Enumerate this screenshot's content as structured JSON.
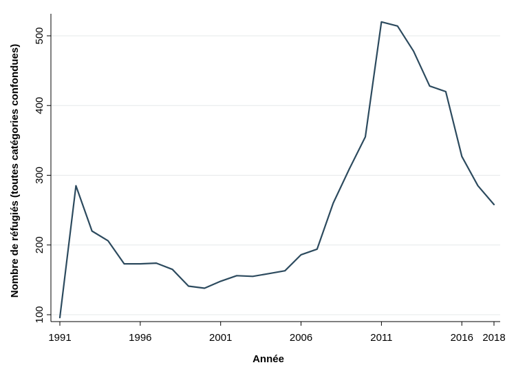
{
  "chart_data": {
    "type": "line",
    "title": "",
    "xlabel": "Année",
    "ylabel": "Nombre de réfugiés (toutes catégories confondues)",
    "xlim": [
      1991,
      2018
    ],
    "ylim": [
      100,
      520
    ],
    "x_ticks": [
      1991,
      1996,
      2001,
      2006,
      2011,
      2016,
      2018
    ],
    "y_ticks": [
      100,
      200,
      300,
      400,
      500
    ],
    "grid": true,
    "legend": "none",
    "series": [
      {
        "color": "#2c4a5e",
        "x": [
          1991,
          1992,
          1993,
          1994,
          1995,
          1996,
          1997,
          1998,
          1999,
          2000,
          2001,
          2002,
          2003,
          2004,
          2005,
          2006,
          2007,
          2008,
          2009,
          2010,
          2011,
          2012,
          2013,
          2014,
          2015,
          2016,
          2017,
          2018
        ],
        "y": [
          96,
          285,
          220,
          206,
          173,
          173,
          174,
          165,
          141,
          138,
          148,
          156,
          155,
          159,
          163,
          186,
          194,
          260,
          309,
          355,
          520,
          514,
          478,
          428,
          420,
          327,
          285,
          258
        ]
      }
    ]
  }
}
